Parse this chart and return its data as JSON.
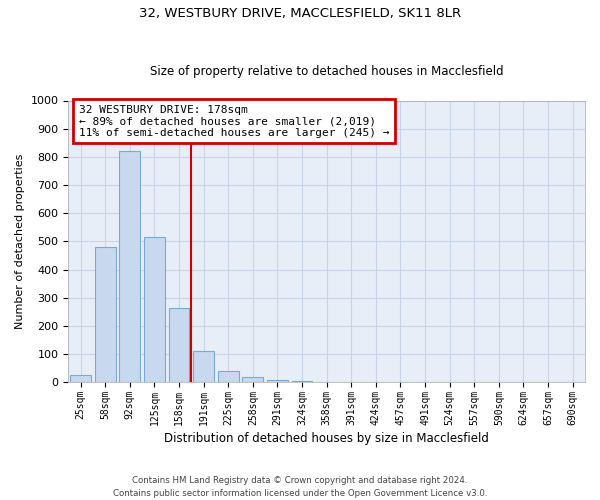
{
  "title_line1": "32, WESTBURY DRIVE, MACCLESFIELD, SK11 8LR",
  "title_line2": "Size of property relative to detached houses in Macclesfield",
  "xlabel": "Distribution of detached houses by size in Macclesfield",
  "ylabel": "Number of detached properties",
  "bar_labels": [
    "25sqm",
    "58sqm",
    "92sqm",
    "125sqm",
    "158sqm",
    "191sqm",
    "225sqm",
    "258sqm",
    "291sqm",
    "324sqm",
    "358sqm",
    "391sqm",
    "424sqm",
    "457sqm",
    "491sqm",
    "524sqm",
    "557sqm",
    "590sqm",
    "624sqm",
    "657sqm",
    "690sqm"
  ],
  "bar_values": [
    25,
    480,
    820,
    515,
    265,
    110,
    38,
    17,
    6,
    3,
    0,
    0,
    0,
    0,
    0,
    0,
    0,
    0,
    0,
    0,
    0
  ],
  "bar_color": "#c8d8ee",
  "bar_edgecolor": "#7aaad0",
  "vline_x_index": 4.5,
  "vline_color": "#cc0000",
  "annotation_title": "32 WESTBURY DRIVE: 178sqm",
  "annotation_line1": "← 89% of detached houses are smaller (2,019)",
  "annotation_line2": "11% of semi-detached houses are larger (245) →",
  "annotation_box_color": "#cc0000",
  "ylim": [
    0,
    1000
  ],
  "yticks": [
    0,
    100,
    200,
    300,
    400,
    500,
    600,
    700,
    800,
    900,
    1000
  ],
  "grid_color": "#c8d4e8",
  "background_color": "#e8eef8",
  "footnote_line1": "Contains HM Land Registry data © Crown copyright and database right 2024.",
  "footnote_line2": "Contains public sector information licensed under the Open Government Licence v3.0."
}
